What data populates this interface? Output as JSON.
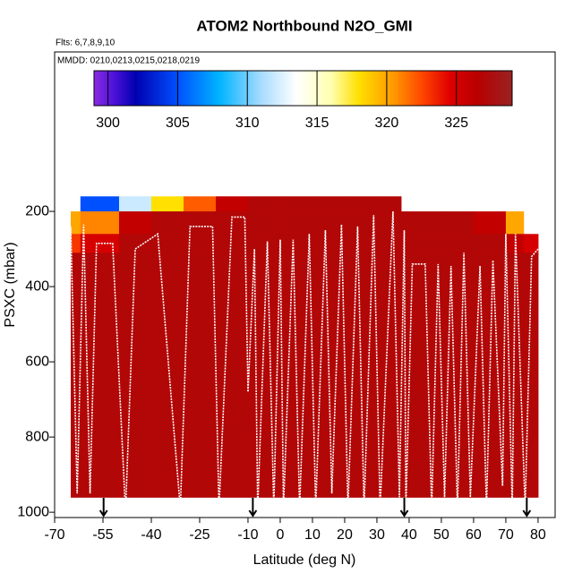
{
  "chart_data": {
    "type": "curtain",
    "title": "ATOM2 Northbound N2O_GMI",
    "flights_label": "Flts: 6,7,8,9,10",
    "dates_label": "MMDD: 0210,0213,0215,0218,0219",
    "x_label": "Latitude (deg N)",
    "y_label": "PSXC (mbar)",
    "xlim": [
      -70,
      85.3
    ],
    "xticks": [
      -70,
      -55,
      -40,
      -25,
      -10,
      0,
      10,
      20,
      30,
      40,
      50,
      60,
      70,
      80
    ],
    "ylim": [
      1014,
      -224
    ],
    "yticks": [
      200,
      400,
      600,
      800,
      1000
    ],
    "cbar_lim": [
      299,
      329
    ],
    "cbar_ticks": [
      300,
      305,
      310,
      315,
      320,
      325
    ],
    "colormap": [
      {
        "value": 299,
        "color": "#8a2be2"
      },
      {
        "value": 300.5,
        "color": "#4a10d8"
      },
      {
        "value": 302,
        "color": "#0000b0"
      },
      {
        "value": 305,
        "color": "#0050ff"
      },
      {
        "value": 308,
        "color": "#00b4ff"
      },
      {
        "value": 311,
        "color": "#a8dcff"
      },
      {
        "value": 313.5,
        "color": "#ffffff"
      },
      {
        "value": 316,
        "color": "#ffffb0"
      },
      {
        "value": 318,
        "color": "#ffe000"
      },
      {
        "value": 320.5,
        "color": "#ff9800"
      },
      {
        "value": 322.5,
        "color": "#ff4800"
      },
      {
        "value": 324.5,
        "color": "#e00000"
      },
      {
        "value": 326.5,
        "color": "#b80000"
      },
      {
        "value": 329,
        "color": "#9a2222"
      }
    ],
    "curtain": {
      "x_edges": [
        -65,
        -62,
        -50,
        -40,
        -30,
        -20,
        -10,
        0,
        10,
        20,
        30,
        37.5,
        50,
        60,
        70,
        75.5,
        80
      ],
      "p_edges": [
        160,
        200,
        260,
        310,
        960
      ],
      "values": [
        [
          null,
          305,
          312,
          318,
          322,
          326,
          327,
          327,
          327,
          327,
          327,
          null,
          null,
          null,
          null,
          null
        ],
        [
          320,
          321,
          326,
          327,
          327,
          327,
          327,
          327,
          327,
          327,
          327,
          327,
          327,
          326,
          320,
          null
        ],
        [
          323,
          325,
          327,
          327,
          327,
          327,
          327,
          327,
          327,
          327,
          327,
          327,
          327,
          327,
          326,
          325
        ],
        [
          327,
          327,
          327,
          327,
          327,
          327,
          327,
          327,
          327,
          327,
          327,
          327,
          327,
          327,
          327,
          327
        ]
      ]
    },
    "track": {
      "x": [
        -66,
        -65,
        -63,
        -61,
        -59,
        -57,
        -52,
        -48,
        -45,
        -38,
        -31,
        -28,
        -21,
        -19,
        -15,
        -11,
        -10,
        -8,
        -7,
        -4,
        -2,
        0,
        1,
        4,
        6,
        9,
        11,
        14,
        16,
        19,
        21,
        24,
        26,
        29,
        31,
        35,
        37,
        38.5,
        39,
        41,
        45,
        47,
        49,
        51,
        53,
        55,
        57,
        59,
        62,
        64,
        66,
        69,
        70,
        72,
        73,
        76,
        78,
        80
      ],
      "y": [
        950,
        240,
        950,
        235,
        950,
        285,
        285,
        1000,
        300,
        260,
        990,
        240,
        240,
        990,
        215,
        215,
        680,
        300,
        990,
        280,
        990,
        275,
        990,
        275,
        990,
        260,
        990,
        250,
        950,
        235,
        990,
        240,
        990,
        210,
        990,
        200,
        960,
        250,
        990,
        340,
        340,
        990,
        340,
        960,
        345,
        990,
        310,
        960,
        345,
        990,
        330,
        930,
        260,
        990,
        260,
        990,
        320,
        300
      ]
    },
    "arrows_x": [
      -54.8,
      -8.5,
      38.5,
      76.5
    ]
  }
}
